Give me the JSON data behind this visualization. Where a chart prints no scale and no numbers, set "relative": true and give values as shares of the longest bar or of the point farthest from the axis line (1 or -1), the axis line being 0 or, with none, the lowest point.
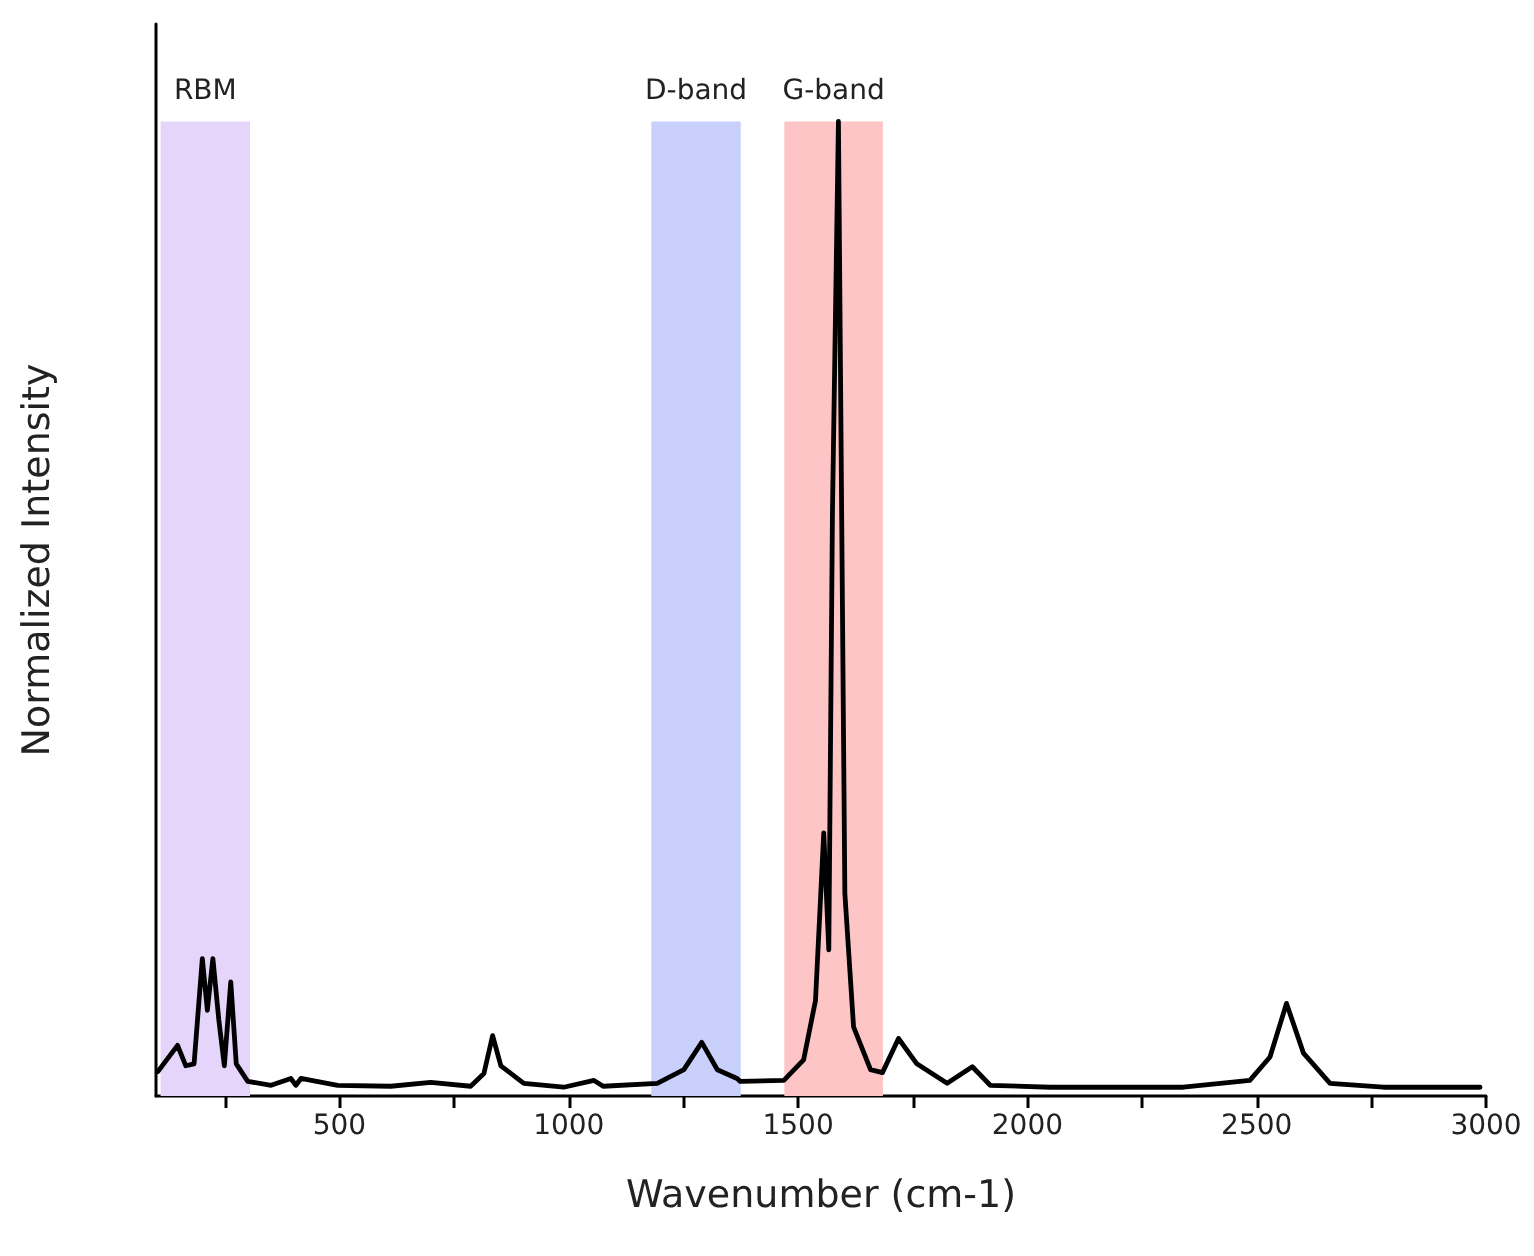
{
  "chart_data": {
    "type": "line",
    "relative": true,
    "xlabel": "Wavenumber (cm-1)",
    "ylabel": "Normalized Intensity",
    "xlim": [
      100,
      3000
    ],
    "xticks": [
      {
        "value": 250,
        "label": null
      },
      500,
      {
        "value": 750,
        "label": null
      },
      1000,
      {
        "value": 1250,
        "label": null
      },
      1500,
      {
        "value": 1750,
        "label": null
      },
      2000,
      {
        "value": 2250,
        "label": null
      },
      2500,
      {
        "value": 2750,
        "label": null
      },
      3000
    ],
    "grid": false,
    "marker": "none",
    "line_style": "solid",
    "bands": [
      {
        "axis": "x",
        "from": 110,
        "to": 305,
        "label": "RBM",
        "color": "#e5d5fb"
      },
      {
        "axis": "x",
        "from": 1180,
        "to": 1375,
        "label": "D-band",
        "color": "#c8d0fb"
      },
      {
        "axis": "x",
        "from": 1470,
        "to": 1685,
        "label": "G-band",
        "color": "#fdc5c5"
      }
    ],
    "series": [
      {
        "color": "#000000",
        "x": [
          104,
          147,
          165,
          183,
          201,
          212,
          224,
          237,
          249,
          263,
          275,
          300,
          351,
          394,
          405,
          416,
          496,
          612,
          699,
          786,
          815,
          834,
          852,
          902,
          989,
          1055,
          1075,
          1193,
          1251,
          1290,
          1324,
          1367,
          1374,
          1469,
          1512,
          1538,
          1556,
          1567,
          1575,
          1588,
          1595,
          1602,
          1621,
          1658,
          1684,
          1719,
          1759,
          1825,
          1880,
          1919,
          2050,
          2340,
          2485,
          2529,
          2565,
          2602,
          2660,
          2776,
          2987
        ],
        "values": [
          0.025,
          0.052,
          0.031,
          0.033,
          0.141,
          0.088,
          0.141,
          0.078,
          0.031,
          0.117,
          0.033,
          0.015,
          0.011,
          0.018,
          0.011,
          0.018,
          0.011,
          0.01,
          0.014,
          0.01,
          0.023,
          0.062,
          0.031,
          0.013,
          0.009,
          0.016,
          0.01,
          0.013,
          0.027,
          0.055,
          0.027,
          0.018,
          0.015,
          0.016,
          0.037,
          0.098,
          0.27,
          0.15,
          0.6,
          1,
          0.6,
          0.208,
          0.071,
          0.027,
          0.024,
          0.059,
          0.033,
          0.013,
          0.03,
          0.011,
          0.009,
          0.009,
          0.016,
          0.04,
          0.095,
          0.044,
          0.013,
          0.009,
          0.009
        ]
      }
    ]
  }
}
